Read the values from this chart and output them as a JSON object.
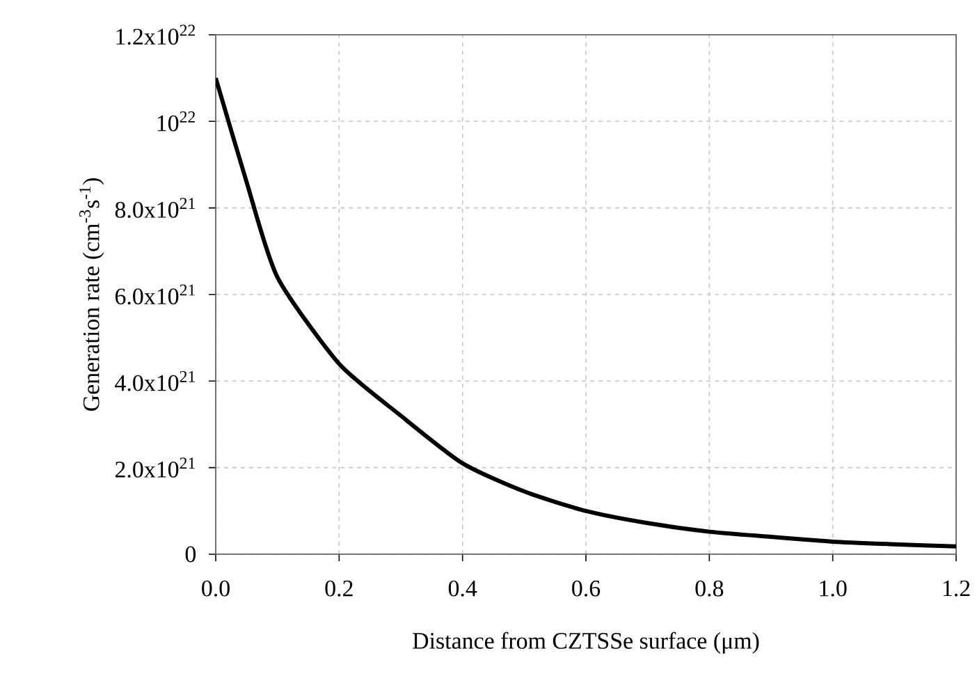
{
  "chart_data": {
    "type": "line",
    "xlabel": "Distance from CZTSSe surface (μm)",
    "ylabel": "Generation rate (cm$^{-3}$s$^{-1}$)",
    "x": [
      0,
      0.05,
      0.1,
      0.2,
      0.3,
      0.4,
      0.5,
      0.6,
      0.7,
      0.8,
      0.9,
      1.0,
      1.1,
      1.2
    ],
    "series": [
      {
        "color": "#000000",
        "values": [
          1.1e+22,
          8.6e+21,
          6.4e+21,
          4.4e+21,
          3.2e+21,
          2.1e+21,
          1.45e+21,
          1e+21,
          7.2e+20,
          5.2e+20,
          4e+20,
          2.9e+20,
          2.3e+20,
          1.8e+20
        ]
      }
    ],
    "xlim": [
      0,
      1.2
    ],
    "ylim": [
      0,
      1.2e+22
    ],
    "xticks": [
      {
        "value": 0,
        "label": "0.0"
      },
      0.2,
      0.4,
      0.6,
      0.8,
      {
        "value": 1.0,
        "label": "1.0"
      },
      1.2
    ],
    "yticks": [
      0,
      {
        "value": 2e+21,
        "label": "2.0x10$^{21}$"
      },
      {
        "value": 4e+21,
        "label": "4.0x10$^{21}$"
      },
      {
        "value": 6e+21,
        "label": "6.0x10$^{21}$"
      },
      {
        "value": 8e+21,
        "label": "8.0x10$^{21}$"
      },
      {
        "value": 1e+22,
        "label": "10$^{22}$"
      },
      {
        "value": 1.2e+22,
        "label": "1.2x10$^{22}$"
      }
    ],
    "grid": true,
    "marker": "none",
    "line_style": "solid"
  }
}
